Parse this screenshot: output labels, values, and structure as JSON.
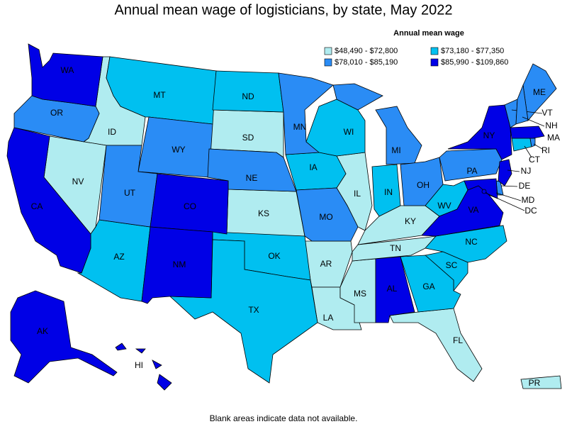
{
  "title": "Annual mean wage of logisticians, by state, May 2022",
  "legend": {
    "title": "Annual mean wage",
    "items": [
      {
        "label": "$48,490 - $72,800",
        "color": "#b0ecf0",
        "states": [
          "ID",
          "NV",
          "SD",
          "KS",
          "IL",
          "AR",
          "LA",
          "MS",
          "TN",
          "KY",
          "FL",
          "PR"
        ]
      },
      {
        "label": "$73,180 - $77,350",
        "color": "#00c0f0",
        "states": [
          "MT",
          "ND",
          "WI",
          "IA",
          "IN",
          "WV",
          "AZ",
          "OK",
          "TX",
          "NC",
          "SC",
          "GA",
          "CT"
        ]
      },
      {
        "label": "$78,010 - $85,190",
        "color": "#2a8cf5",
        "states": [
          "OR",
          "WY",
          "UT",
          "NE",
          "MN",
          "MI",
          "OH",
          "MO",
          "PA",
          "ME",
          "VT",
          "NH",
          "RI",
          "DE"
        ]
      },
      {
        "label": "$85,990 - $109,860",
        "color": "#0000e6",
        "states": [
          "WA",
          "CA",
          "CO",
          "NM",
          "AK",
          "HI",
          "AL",
          "NY",
          "NJ",
          "MA",
          "VA",
          "MD",
          "DC"
        ]
      }
    ]
  },
  "note": "Blank areas indicate data not available."
}
